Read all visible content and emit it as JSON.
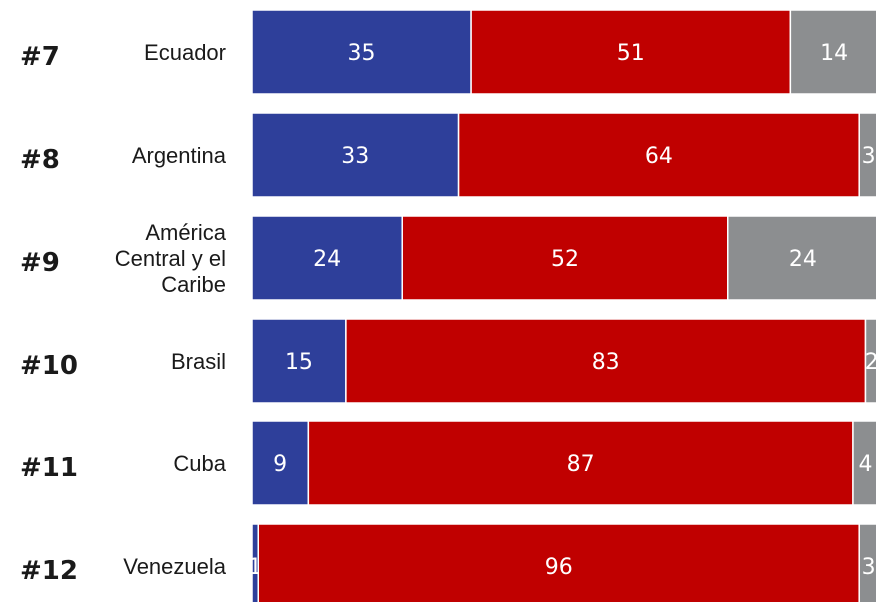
{
  "chart_data": {
    "type": "bar",
    "orientation": "horizontal",
    "stacked": true,
    "normalized_percent": true,
    "ranks": [
      "#7",
      "#8",
      "#9",
      "#10",
      "#11",
      "#12"
    ],
    "categories": [
      "Ecuador",
      "Argentina",
      "América Central y el Caribe",
      "Brasil",
      "Cuba",
      "Venezuela"
    ],
    "category_lines": [
      [
        "Ecuador"
      ],
      [
        "Argentina"
      ],
      [
        "América",
        "Central y el",
        "Caribe"
      ],
      [
        "Brasil"
      ],
      [
        "Cuba"
      ],
      [
        "Venezuela"
      ]
    ],
    "series": [
      {
        "values": [
          35,
          33,
          24,
          15,
          9,
          1
        ],
        "color": "#2e3f9a"
      },
      {
        "values": [
          51,
          64,
          52,
          83,
          87,
          96
        ],
        "color": "#c00000"
      },
      {
        "values": [
          14,
          3,
          24,
          2,
          4,
          3
        ],
        "color": "#8c8e90"
      }
    ],
    "xlim": [
      0,
      100
    ],
    "grid": false,
    "legend": "none"
  }
}
